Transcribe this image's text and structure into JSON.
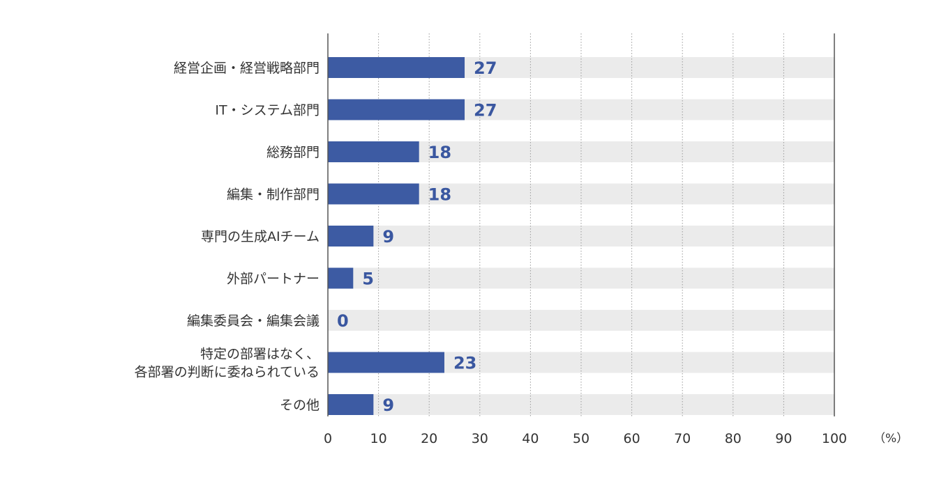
{
  "chart_data": {
    "type": "bar",
    "orientation": "horizontal",
    "categories": [
      [
        "経営企画・経営戦略部門"
      ],
      [
        "IT・システム部門"
      ],
      [
        "総務部門"
      ],
      [
        "編集・制作部門"
      ],
      [
        "専門の生成AIチーム"
      ],
      [
        "外部パートナー"
      ],
      [
        "編集委員会・編集会議"
      ],
      [
        "特定の部署はなく、",
        "各部署の判断に委ねられている"
      ],
      [
        "その他"
      ]
    ],
    "values": [
      27,
      27,
      18,
      18,
      9,
      5,
      0,
      23,
      9
    ],
    "xlim": [
      0,
      100
    ],
    "xticks": [
      "0",
      "10",
      "20",
      "30",
      "40",
      "50",
      "60",
      "70",
      "80",
      "90",
      "100"
    ],
    "unit": "（%）",
    "grid": "vertical dotted",
    "colors": {
      "bar": "#3d5ba3",
      "track": "#ebebeb",
      "value_text": "#3a57a0",
      "axis": "#555555",
      "grid": "#9a9a9a"
    }
  }
}
